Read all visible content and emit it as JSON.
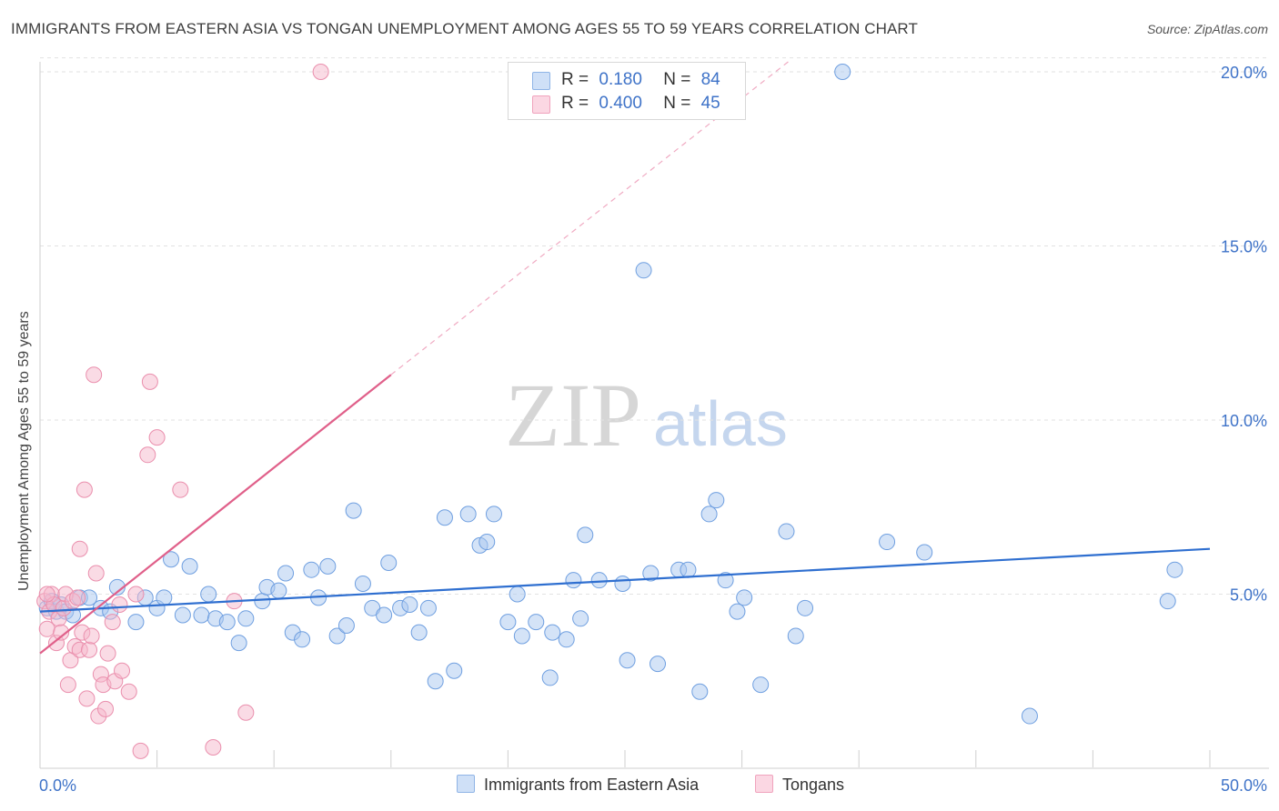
{
  "title": "IMMIGRANTS FROM EASTERN ASIA VS TONGAN UNEMPLOYMENT AMONG AGES 55 TO 59 YEARS CORRELATION CHART",
  "source": "Source: ZipAtlas.com",
  "watermark": {
    "zip": "ZIP",
    "atlas": "atlas"
  },
  "legend_top": {
    "rows": [
      {
        "r_label": "R =",
        "r_value": "0.180",
        "n_label": "N =",
        "n_value": "84",
        "color": "#a9c8f0"
      },
      {
        "r_label": "R =",
        "r_value": "0.400",
        "n_label": "N =",
        "n_value": "45",
        "color": "#f5b8cb"
      }
    ]
  },
  "legend_bottom": [
    {
      "label": "Immigrants from Eastern Asia",
      "color": "#a9c8f0"
    },
    {
      "label": "Tongans",
      "color": "#f5b8cb"
    }
  ],
  "chart_data": {
    "type": "scatter",
    "title": "IMMIGRANTS FROM EASTERN ASIA VS TONGAN UNEMPLOYMENT AMONG AGES 55 TO 59 YEARS CORRELATION CHART",
    "xlabel": "",
    "ylabel": "Unemployment Among Ages 55 to 59 years",
    "xlim": [
      0,
      50
    ],
    "ylim": [
      0,
      20.5
    ],
    "x_tick_labels": [
      {
        "value": 0,
        "label": "0.0%"
      },
      {
        "value": 50,
        "label": "50.0%"
      }
    ],
    "y_tick_labels": [
      {
        "value": 5,
        "label": "5.0%"
      },
      {
        "value": 10,
        "label": "10.0%"
      },
      {
        "value": 15,
        "label": "15.0%"
      },
      {
        "value": 20,
        "label": "20.0%"
      }
    ],
    "grid": true,
    "series": [
      {
        "name": "Immigrants from Eastern Asia",
        "color": "#a9c8f0",
        "stroke": "#6f9fe0",
        "trend": {
          "x0": 0,
          "y0": 4.5,
          "x1": 50,
          "y1": 6.3,
          "color": "#2f6fd0"
        },
        "points": [
          [
            0.3,
            4.6
          ],
          [
            0.5,
            4.8
          ],
          [
            0.7,
            4.5
          ],
          [
            0.9,
            4.7
          ],
          [
            1.1,
            4.5
          ],
          [
            1.4,
            4.4
          ],
          [
            1.7,
            4.9
          ],
          [
            2.1,
            4.9
          ],
          [
            2.6,
            4.6
          ],
          [
            3.0,
            4.5
          ],
          [
            3.3,
            5.2
          ],
          [
            4.1,
            4.2
          ],
          [
            4.5,
            4.9
          ],
          [
            5.0,
            4.6
          ],
          [
            5.3,
            4.9
          ],
          [
            5.6,
            6.0
          ],
          [
            6.1,
            4.4
          ],
          [
            6.4,
            5.8
          ],
          [
            6.9,
            4.4
          ],
          [
            7.2,
            5.0
          ],
          [
            7.5,
            4.3
          ],
          [
            8.0,
            4.2
          ],
          [
            8.5,
            3.6
          ],
          [
            8.8,
            4.3
          ],
          [
            9.5,
            4.8
          ],
          [
            9.7,
            5.2
          ],
          [
            10.2,
            5.1
          ],
          [
            10.5,
            5.6
          ],
          [
            10.8,
            3.9
          ],
          [
            11.2,
            3.7
          ],
          [
            11.6,
            5.7
          ],
          [
            11.9,
            4.9
          ],
          [
            12.3,
            5.8
          ],
          [
            12.7,
            3.8
          ],
          [
            13.1,
            4.1
          ],
          [
            13.4,
            7.4
          ],
          [
            13.8,
            5.3
          ],
          [
            14.2,
            4.6
          ],
          [
            14.7,
            4.4
          ],
          [
            14.9,
            5.9
          ],
          [
            15.4,
            4.6
          ],
          [
            15.8,
            4.7
          ],
          [
            16.2,
            3.9
          ],
          [
            16.6,
            4.6
          ],
          [
            16.9,
            2.5
          ],
          [
            17.3,
            7.2
          ],
          [
            17.7,
            2.8
          ],
          [
            18.3,
            7.3
          ],
          [
            18.8,
            6.4
          ],
          [
            19.1,
            6.5
          ],
          [
            19.4,
            7.3
          ],
          [
            20.0,
            4.2
          ],
          [
            20.4,
            5.0
          ],
          [
            20.6,
            3.8
          ],
          [
            21.2,
            4.2
          ],
          [
            21.8,
            2.6
          ],
          [
            21.9,
            3.9
          ],
          [
            22.5,
            3.7
          ],
          [
            22.8,
            5.4
          ],
          [
            23.1,
            4.3
          ],
          [
            23.3,
            6.7
          ],
          [
            23.9,
            5.4
          ],
          [
            24.9,
            5.3
          ],
          [
            25.1,
            3.1
          ],
          [
            25.8,
            14.3
          ],
          [
            26.1,
            5.6
          ],
          [
            26.4,
            3.0
          ],
          [
            27.3,
            5.7
          ],
          [
            27.7,
            5.7
          ],
          [
            28.2,
            2.2
          ],
          [
            28.6,
            7.3
          ],
          [
            28.9,
            7.7
          ],
          [
            29.3,
            5.4
          ],
          [
            29.8,
            4.5
          ],
          [
            30.1,
            4.9
          ],
          [
            30.8,
            2.4
          ],
          [
            31.9,
            6.8
          ],
          [
            32.3,
            3.8
          ],
          [
            32.7,
            4.6
          ],
          [
            34.3,
            20.0
          ],
          [
            36.2,
            6.5
          ],
          [
            37.8,
            6.2
          ],
          [
            42.3,
            1.5
          ],
          [
            48.2,
            4.8
          ],
          [
            48.5,
            5.7
          ]
        ]
      },
      {
        "name": "Tongans",
        "color": "#f5b8cb",
        "stroke": "#ea8fad",
        "trend": {
          "x0": 0,
          "y0": 3.3,
          "x1": 15,
          "y1": 11.3,
          "dash_x1": 32,
          "dash_y1": 20.3,
          "color": "#e0608a"
        },
        "points": [
          [
            0.2,
            4.8
          ],
          [
            0.3,
            4.0
          ],
          [
            0.4,
            4.5
          ],
          [
            0.5,
            5.0
          ],
          [
            0.6,
            4.7
          ],
          [
            0.7,
            3.6
          ],
          [
            0.8,
            4.3
          ],
          [
            0.9,
            3.9
          ],
          [
            1.0,
            4.6
          ],
          [
            1.1,
            5.0
          ],
          [
            1.2,
            2.4
          ],
          [
            1.3,
            3.1
          ],
          [
            1.4,
            4.8
          ],
          [
            1.5,
            3.5
          ],
          [
            1.6,
            4.9
          ],
          [
            1.7,
            3.4
          ],
          [
            1.7,
            6.3
          ],
          [
            1.8,
            3.9
          ],
          [
            1.9,
            8.0
          ],
          [
            2.0,
            2.0
          ],
          [
            2.1,
            3.4
          ],
          [
            2.2,
            3.8
          ],
          [
            2.3,
            11.3
          ],
          [
            2.4,
            5.6
          ],
          [
            2.5,
            1.5
          ],
          [
            2.6,
            2.7
          ],
          [
            2.7,
            2.4
          ],
          [
            2.8,
            1.7
          ],
          [
            2.9,
            3.3
          ],
          [
            3.1,
            4.2
          ],
          [
            3.2,
            2.5
          ],
          [
            3.4,
            4.7
          ],
          [
            3.5,
            2.8
          ],
          [
            3.8,
            2.2
          ],
          [
            4.1,
            5.0
          ],
          [
            4.3,
            0.5
          ],
          [
            4.6,
            9.0
          ],
          [
            4.7,
            11.1
          ],
          [
            5.0,
            9.5
          ],
          [
            6.0,
            8.0
          ],
          [
            7.4,
            0.6
          ],
          [
            8.3,
            4.8
          ],
          [
            8.8,
            1.6
          ],
          [
            12.0,
            20.0
          ],
          [
            0.3,
            5.0
          ]
        ]
      }
    ]
  }
}
